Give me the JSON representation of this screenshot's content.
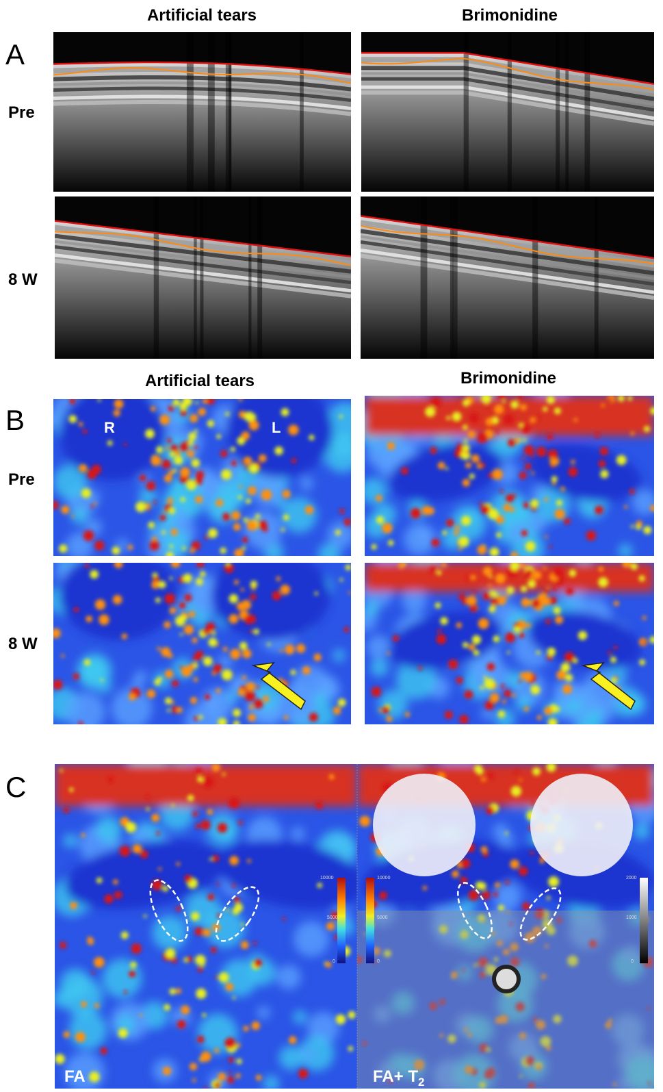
{
  "panel_a": {
    "letter": "A",
    "columns": [
      "Artificial tears",
      "Brimonidine"
    ],
    "rows": [
      "Pre",
      "8 W"
    ]
  },
  "panel_b": {
    "letter": "B",
    "columns": [
      "Artificial tears",
      "Brimonidine"
    ],
    "rows": [
      "Pre",
      "8 W"
    ],
    "eye_labels": [
      "R",
      "L"
    ]
  },
  "panel_c": {
    "letter": "C",
    "fa_label": "FA",
    "overlay_label": "FA+ T",
    "overlay_subscript": "2",
    "colorbar_fa": [
      10000,
      5000,
      0
    ],
    "colorbar_overlay": [
      10000,
      5000,
      0
    ],
    "colorbar_t2": [
      2000,
      1000,
      0
    ]
  }
}
